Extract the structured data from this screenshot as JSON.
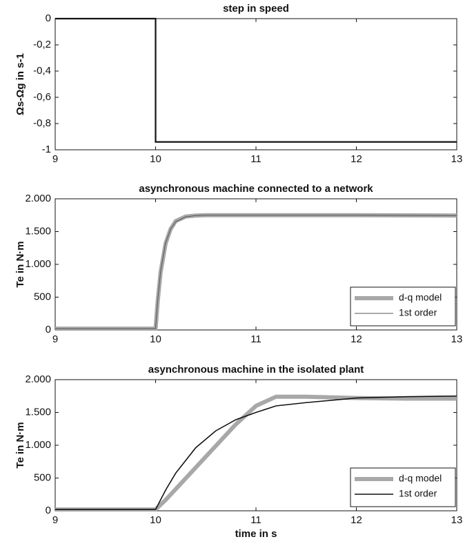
{
  "chart_data": [
    {
      "type": "line",
      "title": "step in speed",
      "ylabel": "Ωs-Ωg in s-1",
      "x": [
        9,
        10,
        10,
        13
      ],
      "series": [
        {
          "color": "#111111",
          "width": 2.2,
          "values": [
            0,
            0,
            -0.94,
            -0.94
          ]
        }
      ],
      "xlim": [
        9,
        13
      ],
      "xticks": [
        9,
        10,
        11,
        12,
        13
      ],
      "ylim": [
        -1,
        0
      ],
      "yticks": [
        {
          "value": -1,
          "label": "-1"
        },
        {
          "value": -0.8,
          "label": "-0,8"
        },
        {
          "value": -0.6,
          "label": "-0,6"
        },
        {
          "value": -0.4,
          "label": "-0,4"
        },
        {
          "value": -0.2,
          "label": "-0,2"
        },
        0
      ]
    },
    {
      "type": "line",
      "title": "asynchronous machine connected to a network",
      "ylabel": "Te in N·m",
      "x": [
        9,
        10,
        10.02,
        10.05,
        10.1,
        10.15,
        10.2,
        10.3,
        10.4,
        10.5,
        11,
        12,
        13
      ],
      "series": [
        {
          "name": "d-q model",
          "color": "#a8a8a8",
          "width": 6,
          "values": [
            20,
            20,
            420,
            880,
            1320,
            1540,
            1660,
            1730,
            1745,
            1750,
            1750,
            1750,
            1745
          ]
        },
        {
          "name": "1st order",
          "color": "#555555",
          "width": 1,
          "values": [
            20,
            20,
            436,
            895,
            1330,
            1540,
            1650,
            1725,
            1745,
            1750,
            1750,
            1750,
            1745
          ]
        }
      ],
      "xlim": [
        9,
        13
      ],
      "xticks": [
        9,
        10,
        11,
        12,
        13
      ],
      "ylim": [
        0,
        2000
      ],
      "yticks": [
        0,
        500,
        {
          "value": 1000,
          "label": "1.000"
        },
        {
          "value": 1500,
          "label": "1.500"
        },
        {
          "value": 2000,
          "label": "2.000"
        }
      ],
      "legend": "lower right"
    },
    {
      "type": "line",
      "title": "asynchronous machine in the isolated plant",
      "ylabel": "Te in N·m",
      "xlabel": "time in s",
      "x": [
        9,
        10,
        10.1,
        10.2,
        10.4,
        10.6,
        10.8,
        11,
        11.2,
        11.5,
        12,
        12.5,
        13
      ],
      "series": [
        {
          "name": "d-q model",
          "color": "#a8a8a8",
          "width": 6,
          "values": [
            20,
            20,
            165,
            330,
            660,
            990,
            1320,
            1600,
            1740,
            1740,
            1720,
            1710,
            1710
          ]
        },
        {
          "name": "1st order",
          "color": "#111111",
          "width": 1.6,
          "values": [
            20,
            20,
            316,
            573,
            962,
            1220,
            1390,
            1500,
            1600,
            1650,
            1720,
            1740,
            1750
          ]
        }
      ],
      "xlim": [
        9,
        13
      ],
      "xticks": [
        9,
        10,
        11,
        12,
        13
      ],
      "ylim": [
        0,
        2000
      ],
      "yticks": [
        0,
        500,
        {
          "value": 1000,
          "label": "1.000"
        },
        {
          "value": 1500,
          "label": "1.500"
        },
        {
          "value": 2000,
          "label": "2.000"
        }
      ],
      "legend": "lower right"
    }
  ]
}
